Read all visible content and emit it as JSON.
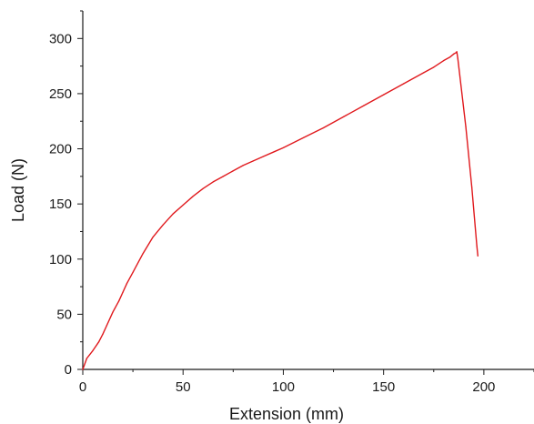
{
  "chart_data": {
    "type": "line",
    "title": "",
    "xlabel": "Extension (mm)",
    "ylabel": "Load (N)",
    "xlim": [
      0,
      225
    ],
    "ylim": [
      0,
      325
    ],
    "x_ticks": [
      0,
      50,
      100,
      150,
      200
    ],
    "y_ticks": [
      0,
      50,
      100,
      150,
      200,
      250,
      300
    ],
    "x_tick_labels": [
      "0",
      "50",
      "100",
      "150",
      "200"
    ],
    "y_tick_labels": [
      "0",
      "50",
      "100",
      "150",
      "200",
      "250",
      "300"
    ],
    "grid": false,
    "legend": "none",
    "series": [
      {
        "color": "#e0191d",
        "x": [
          0,
          2,
          5,
          8,
          10,
          12,
          15,
          18,
          20,
          22,
          25,
          30,
          35,
          40,
          45,
          50,
          55,
          60,
          65,
          70,
          75,
          80,
          85,
          90,
          95,
          100,
          110,
          120,
          130,
          140,
          150,
          160,
          170,
          175,
          180,
          183,
          185,
          186,
          186.5,
          187,
          191,
          194,
          196.5,
          197
        ],
        "y": [
          0,
          10,
          17,
          25,
          32,
          40,
          52,
          62,
          70,
          78,
          88,
          105,
          120,
          131,
          141,
          149,
          157,
          164,
          170,
          175,
          180,
          185,
          189,
          193,
          197,
          201,
          210,
          219,
          229,
          239,
          249,
          259,
          269,
          274,
          280,
          283,
          286,
          287,
          288,
          282,
          220,
          165,
          112,
          103
        ]
      }
    ]
  }
}
